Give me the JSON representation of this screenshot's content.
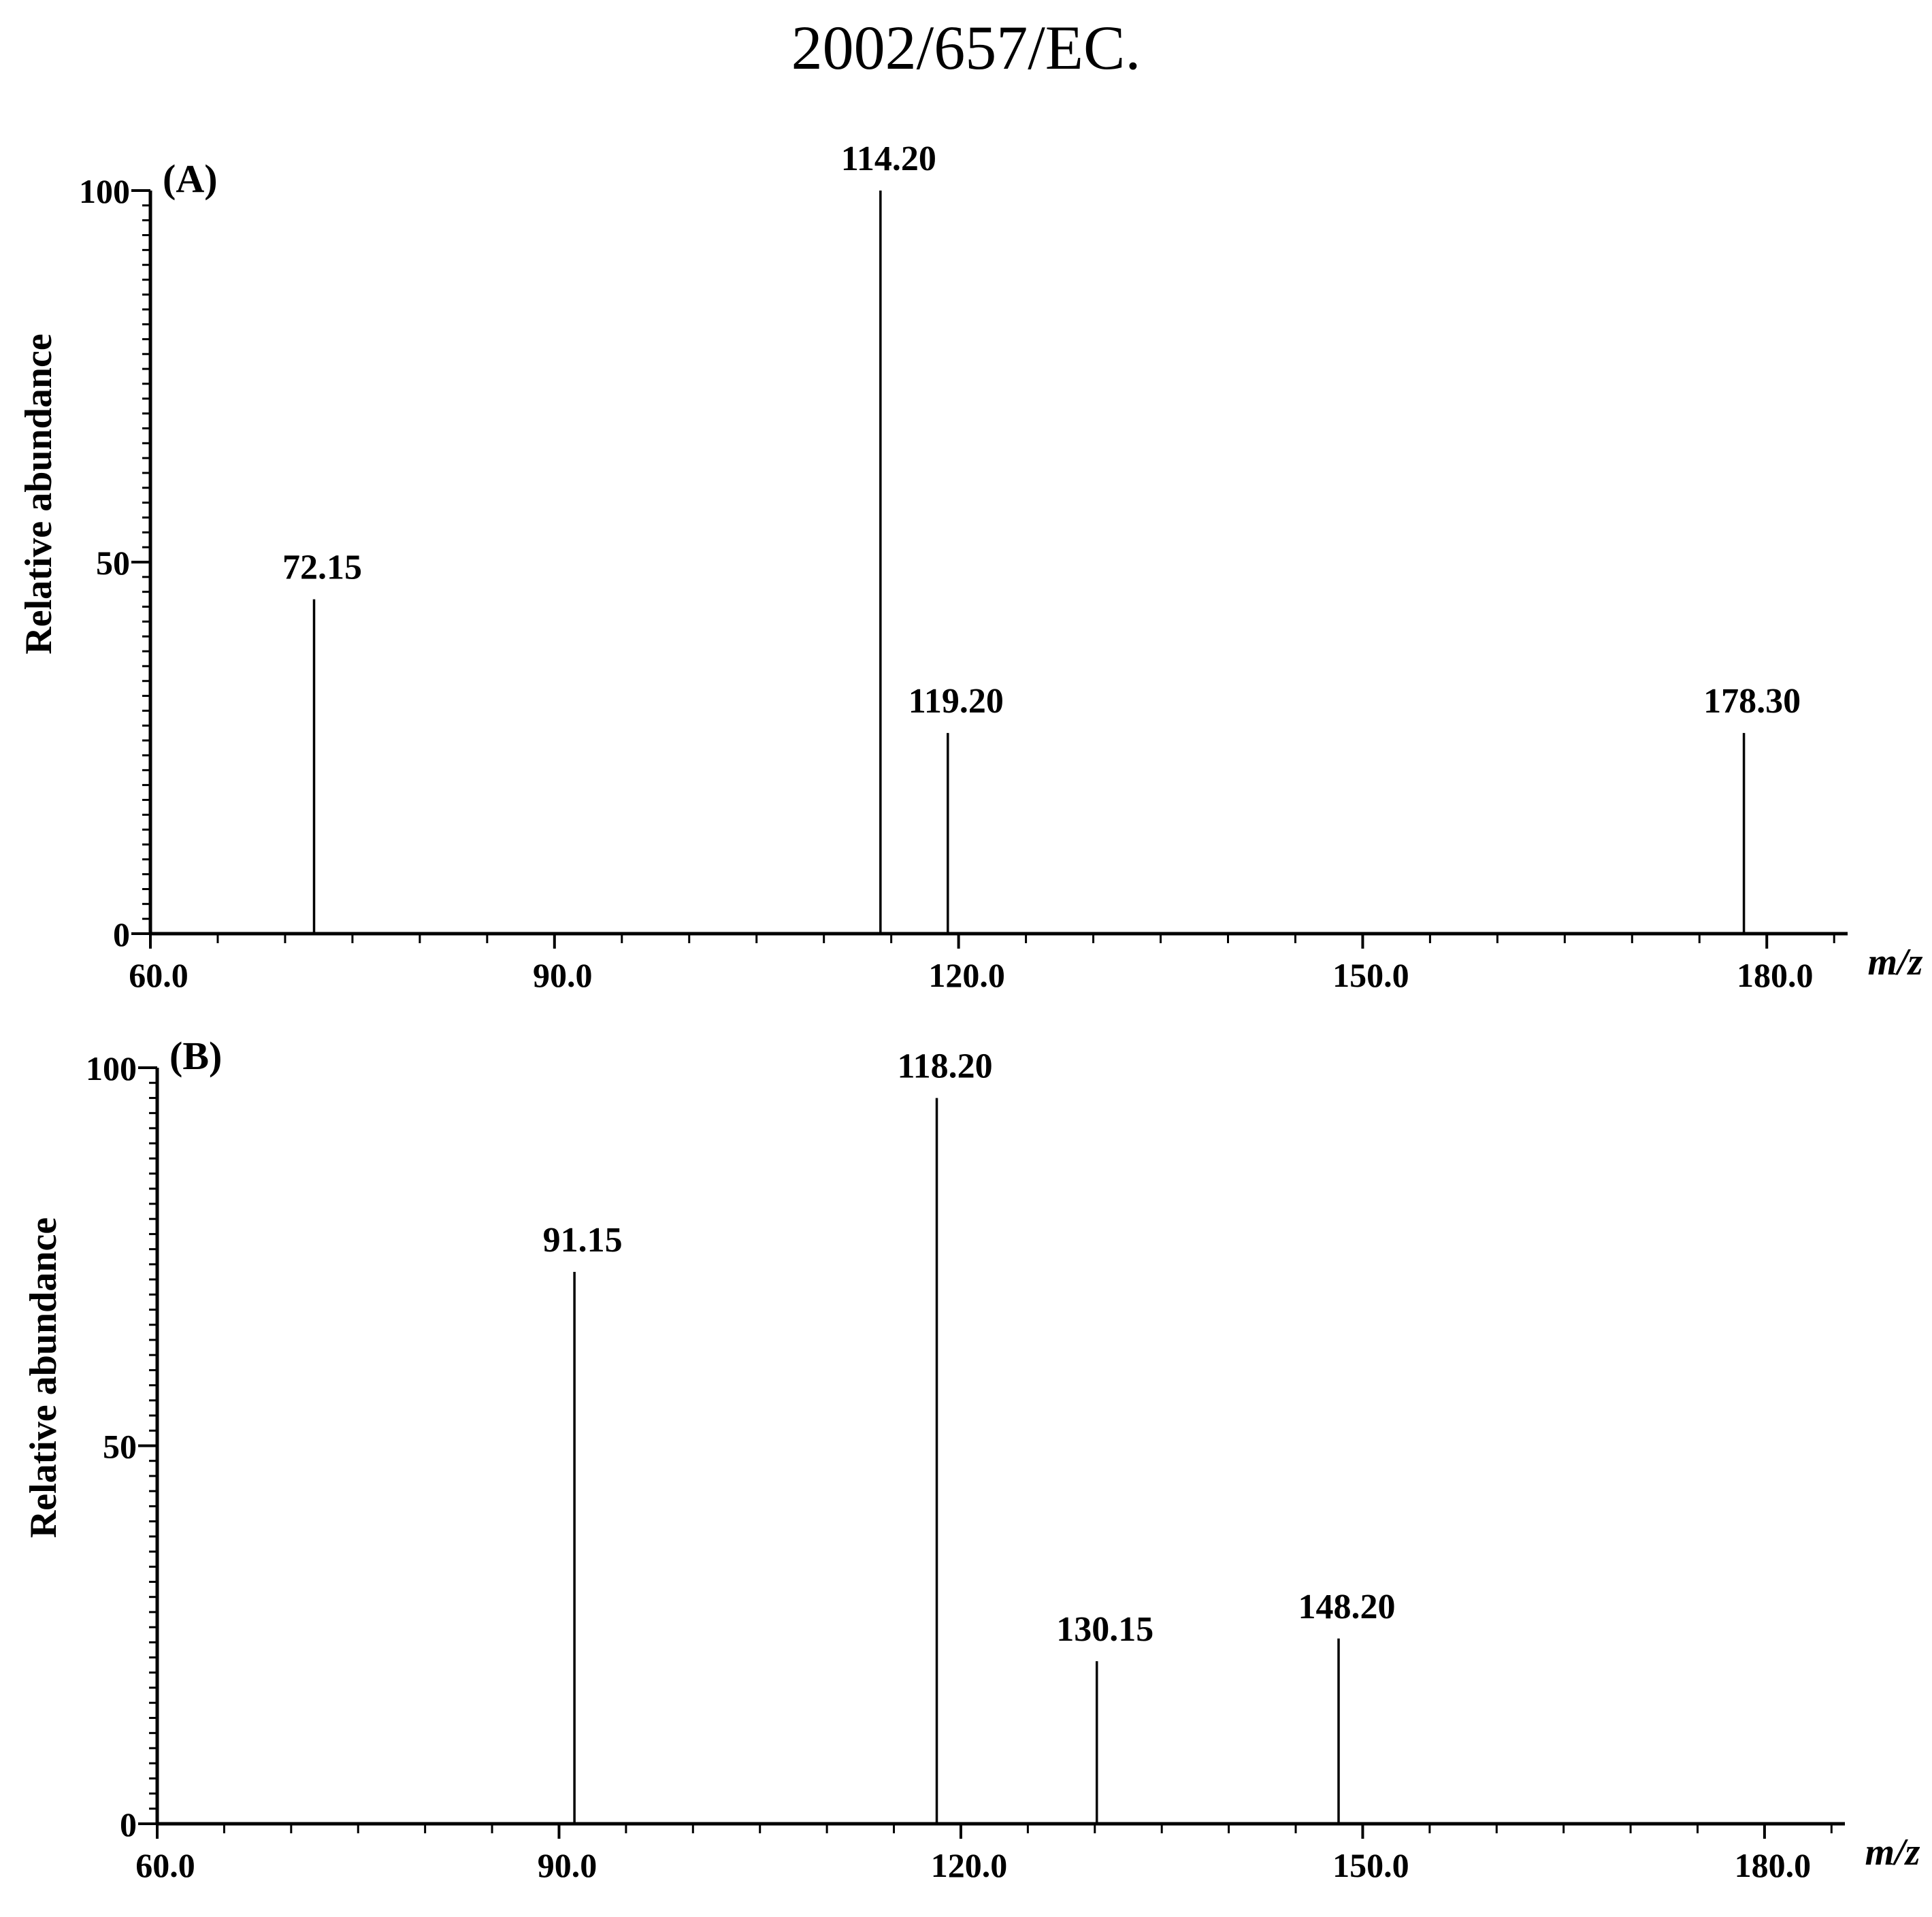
{
  "header": "2002/657/EC.",
  "chart_data": [
    {
      "type": "bar",
      "panel_label": "(A)",
      "xlabel": "m/z",
      "ylabel": "Relative abundance",
      "xlim": [
        60,
        186
      ],
      "ylim": [
        0,
        100
      ],
      "x_ticks": [
        "60.0",
        "90.0",
        "120.0",
        "150.0",
        "180.0"
      ],
      "y_ticks": [
        "0",
        "50",
        "100"
      ],
      "peaks": [
        {
          "x": 72.15,
          "y": 45,
          "label": "72.15"
        },
        {
          "x": 114.2,
          "y": 100,
          "label": "114.20"
        },
        {
          "x": 119.2,
          "y": 27,
          "label": "119.20"
        },
        {
          "x": 178.3,
          "y": 27,
          "label": "178.30"
        }
      ]
    },
    {
      "type": "bar",
      "panel_label": "(B)",
      "xlabel": "m/z",
      "ylabel": "Relative abundance",
      "xlim": [
        60,
        186
      ],
      "ylim": [
        0,
        100
      ],
      "x_ticks": [
        "60.0",
        "90.0",
        "120.0",
        "150.0",
        "180.0"
      ],
      "y_ticks": [
        "0",
        "50",
        "100"
      ],
      "peaks": [
        {
          "x": 91.15,
          "y": 73,
          "label": "91.15"
        },
        {
          "x": 118.2,
          "y": 96,
          "label": "118.20"
        },
        {
          "x": 130.15,
          "y": 21.5,
          "label": "130.15"
        },
        {
          "x": 148.2,
          "y": 24.5,
          "label": "148.20"
        }
      ]
    }
  ]
}
